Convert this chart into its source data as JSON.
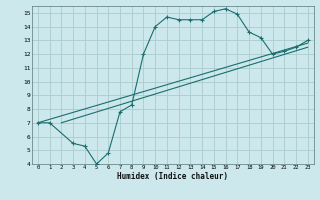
{
  "xlabel": "Humidex (Indice chaleur)",
  "bg_color": "#cce8ec",
  "grid_color": "#aacccc",
  "line_color": "#1a6e6e",
  "xlim": [
    -0.5,
    23.5
  ],
  "ylim": [
    4,
    15.5
  ],
  "xticks": [
    0,
    1,
    2,
    3,
    4,
    5,
    6,
    7,
    8,
    9,
    10,
    11,
    12,
    13,
    14,
    15,
    16,
    17,
    18,
    19,
    20,
    21,
    22,
    23
  ],
  "yticks": [
    4,
    5,
    6,
    7,
    8,
    9,
    10,
    11,
    12,
    13,
    14,
    15
  ],
  "curve_x": [
    0,
    1,
    3,
    4,
    5,
    6,
    7,
    8,
    9,
    10,
    11,
    12,
    13,
    14,
    15,
    16,
    17,
    18,
    19,
    20,
    21,
    22,
    23
  ],
  "curve_y": [
    7.0,
    7.0,
    5.5,
    5.3,
    4.0,
    4.8,
    7.8,
    8.3,
    12.0,
    14.0,
    14.7,
    14.5,
    14.5,
    14.5,
    15.1,
    15.3,
    14.9,
    13.6,
    13.2,
    12.0,
    12.2,
    12.5,
    13.0
  ],
  "line2_x": [
    0,
    23
  ],
  "line2_y": [
    7.0,
    12.8
  ],
  "line3_x": [
    2,
    23
  ],
  "line3_y": [
    7.0,
    12.5
  ]
}
